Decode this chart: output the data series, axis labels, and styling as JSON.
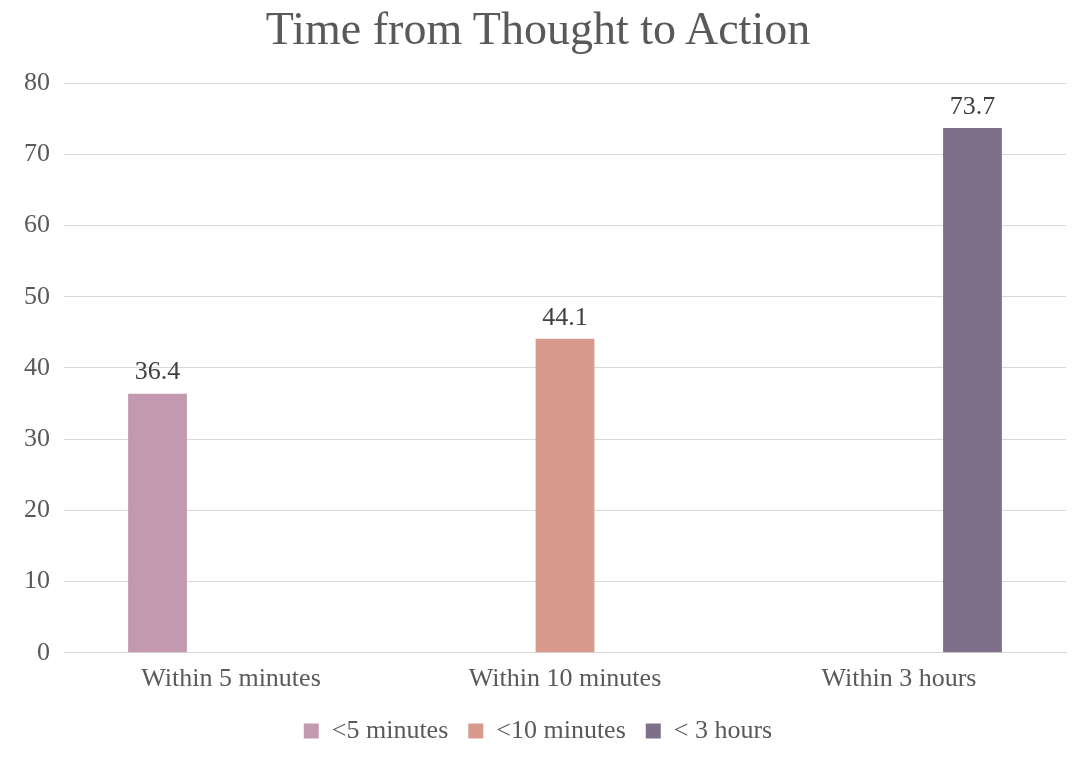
{
  "chart_data": {
    "type": "bar",
    "title": "Time from Thought to Action",
    "categories": [
      "Within 5 minutes",
      "Within 10 minutes",
      "Within 3 hours"
    ],
    "series": [
      {
        "name": "<5 minutes",
        "color": "#c399b0",
        "values": [
          36.4,
          null,
          null
        ]
      },
      {
        "name": "<10 minutes",
        "color": "#d99a8e",
        "values": [
          null,
          44.1,
          null
        ]
      },
      {
        "name": "< 3 hours",
        "color": "#7f6f8a",
        "values": [
          null,
          null,
          73.7
        ]
      }
    ],
    "ylim": [
      0,
      80
    ],
    "yticks": [
      0,
      10,
      20,
      30,
      40,
      50,
      60,
      70,
      80
    ],
    "grid": "y",
    "legend": "bottom",
    "data_labels": true
  }
}
